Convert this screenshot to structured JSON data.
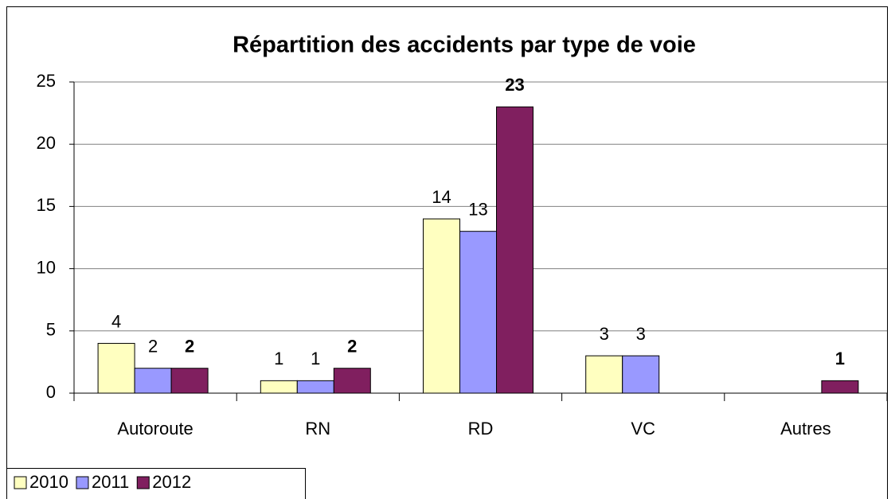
{
  "chart_data": {
    "type": "bar",
    "title": "Répartition des accidents par type de voie",
    "categories": [
      "Autoroute",
      "RN",
      "RD",
      "VC",
      "Autres"
    ],
    "series": [
      {
        "name": "2010",
        "color": "#ffffc0",
        "label_bold": false,
        "values": [
          4,
          1,
          14,
          3,
          null
        ]
      },
      {
        "name": "2011",
        "color": "#9999ff",
        "label_bold": false,
        "values": [
          2,
          1,
          13,
          3,
          null
        ]
      },
      {
        "name": "2012",
        "color": "#801f5f",
        "label_bold": true,
        "values": [
          2,
          2,
          23,
          null,
          1
        ]
      }
    ],
    "ylim": [
      0,
      25
    ],
    "yticks": [
      0,
      5,
      10,
      15,
      20,
      25
    ],
    "grid": true,
    "legend": "bottom-left"
  }
}
